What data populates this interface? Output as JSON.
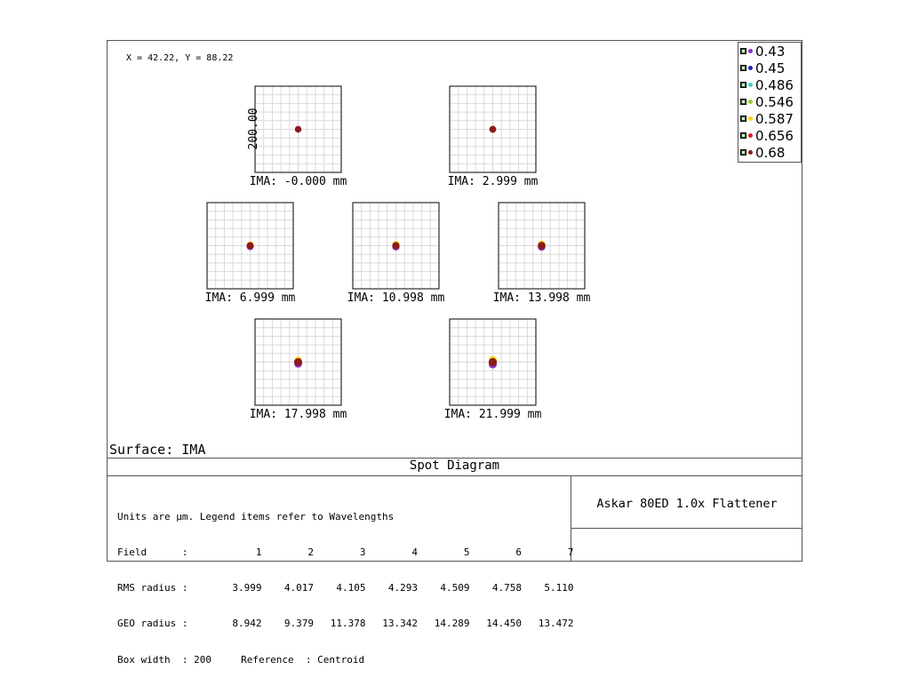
{
  "cursor_readout": "X = 42.22, Y = 88.22",
  "legend": {
    "items": [
      {
        "label": "0.43",
        "color": "#8b2fc9"
      },
      {
        "label": "0.45",
        "color": "#1f1fb4"
      },
      {
        "label": "0.486",
        "color": "#3fd0d0"
      },
      {
        "label": "0.546",
        "color": "#9acd32"
      },
      {
        "label": "0.587",
        "color": "#ffd700"
      },
      {
        "label": "0.656",
        "color": "#e02020"
      },
      {
        "label": "0.68",
        "color": "#8b1a1a"
      }
    ]
  },
  "surface_label": "Surface: IMA",
  "title": "Spot Diagram",
  "lens_name": "Askar 80ED 1.0x Flattener",
  "info": {
    "units_line": "Units are µm. Legend items refer to Wavelengths",
    "field_label": "Field      :",
    "rms_label": "RMS radius :",
    "geo_label": "GEO radius :",
    "box_width_line": "Box width  : 200     Reference  : Centroid"
  },
  "chart_data": {
    "type": "scatter",
    "box_width": 200,
    "box_width_label": "200.00",
    "fields": [
      {
        "field": "1",
        "label": "IMA: -0.000 mm",
        "rms": "3.999",
        "geo": "8.942"
      },
      {
        "field": "2",
        "label": "IMA: 2.999 mm",
        "rms": "4.017",
        "geo": "9.379"
      },
      {
        "field": "3",
        "label": "IMA: 6.999 mm",
        "rms": "4.105",
        "geo": "11.378"
      },
      {
        "field": "4",
        "label": "IMA: 10.998 mm",
        "rms": "4.293",
        "geo": "13.342"
      },
      {
        "field": "5",
        "label": "IMA: 13.998 mm",
        "rms": "4.509",
        "geo": "14.289"
      },
      {
        "field": "6",
        "label": "IMA: 17.998 mm",
        "rms": "4.758",
        "geo": "14.450"
      },
      {
        "field": "7",
        "label": "IMA: 21.999 mm",
        "rms": "5.110",
        "geo": "13.472"
      }
    ]
  }
}
